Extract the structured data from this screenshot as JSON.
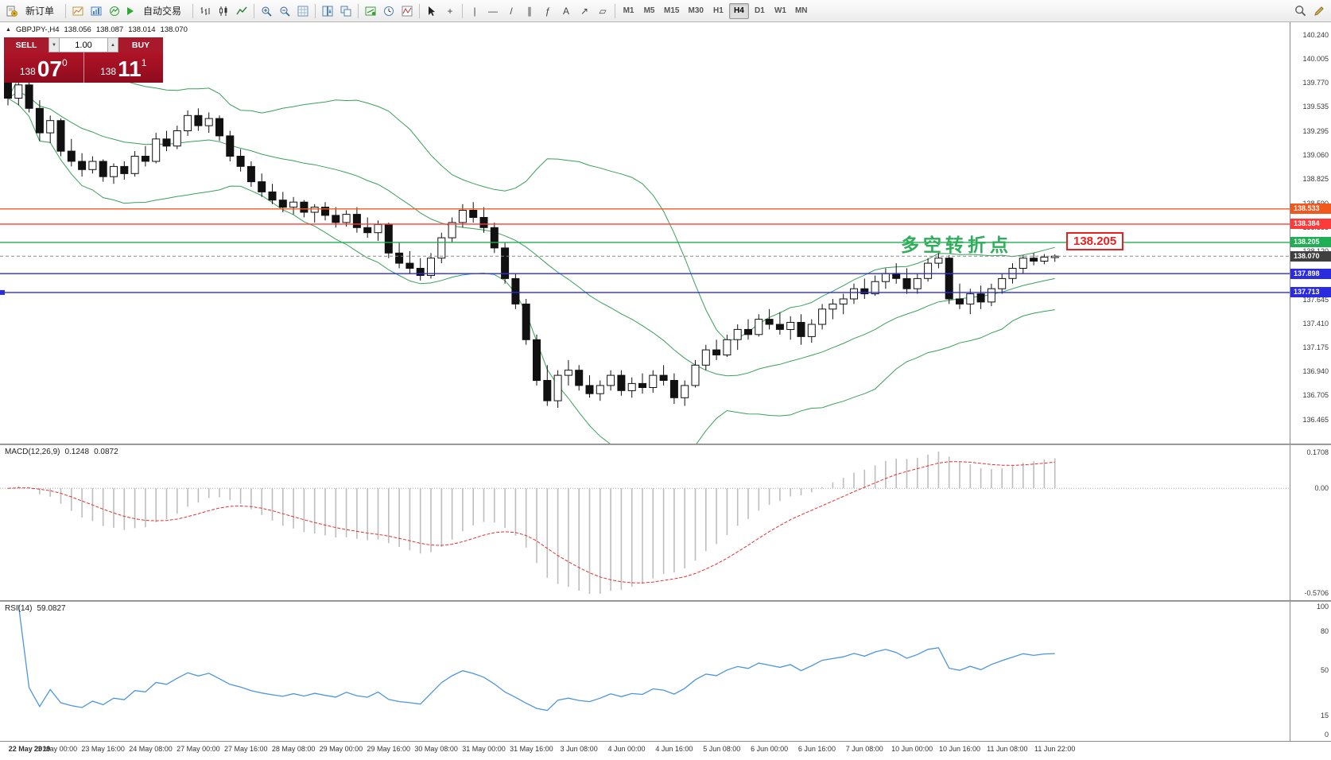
{
  "toolbar": {
    "new_order_label": "新订单",
    "auto_trading_label": "自动交易",
    "timeframes": [
      "M1",
      "M5",
      "M15",
      "M30",
      "H1",
      "H4",
      "D1",
      "W1",
      "MN"
    ],
    "active_timeframe": "H4",
    "icons": {
      "cursor": "↖",
      "crosshair": "+",
      "vertical_line": "|",
      "horizontal_line": "—",
      "trendline": "/",
      "channel": "∥",
      "fibonacci": "ƒ",
      "text": "A",
      "arrows": "↗",
      "shapes": "▱"
    }
  },
  "chart_header": {
    "symbol": "GBPJPY-,H4",
    "open": "138.056",
    "high": "138.087",
    "low": "138.014",
    "close": "138.070"
  },
  "trade_panel": {
    "sell_label": "SELL",
    "buy_label": "BUY",
    "volume": "1.00",
    "sell_price": {
      "prefix": "138",
      "big": "07",
      "sup": "0"
    },
    "buy_price": {
      "prefix": "138",
      "big": "11",
      "sup": "1"
    }
  },
  "annotation": {
    "text": "多空转折点",
    "color": "#2fae5a",
    "anchor_price": 138.205
  },
  "price_tag": {
    "text": "138.205",
    "color": "#e82020",
    "anchor_price": 138.205
  },
  "main_axis": {
    "labels": [
      "140.240",
      "140.005",
      "139.770",
      "139.535",
      "139.295",
      "139.060",
      "138.825",
      "138.590",
      "138.355",
      "138.120",
      "137.885",
      "137.645",
      "137.410",
      "137.175",
      "136.940",
      "136.705",
      "136.465"
    ]
  },
  "lines": [
    {
      "price": 138.533,
      "label": "138.533",
      "color": "#f2581e"
    },
    {
      "price": 138.384,
      "label": "138.384",
      "color": "#ff3a3a"
    },
    {
      "price": 138.205,
      "label": "138.205",
      "color": "#1fae53"
    },
    {
      "price": 137.898,
      "label": "137.898",
      "color": "#2b2be0"
    },
    {
      "price": 137.713,
      "label": "137.713",
      "color": "#2b2be0",
      "handle": true
    }
  ],
  "current_price": {
    "price": 138.07,
    "label": "138.070",
    "line_color": "#888888",
    "chip_color": "#3f3f3f"
  },
  "macd": {
    "label": "MACD(12,26,9)",
    "value_main": "0.1248",
    "value_signal": "0.0872",
    "axis": [
      "0.1708",
      "0.00",
      "-0.5706"
    ],
    "bar_color": "#bdbdbd",
    "signal_color": "#e03232"
  },
  "rsi": {
    "label": "RSI(14)",
    "value": "59.0827",
    "axis_labels": [
      "100",
      "80",
      "50",
      "15",
      "0"
    ],
    "axis_values": [
      100,
      80,
      50,
      15,
      0
    ],
    "line_color": "#4d96dc"
  },
  "time_axis": {
    "labels": [
      "22 May 2019",
      "23 May 00:00",
      "23 May 16:00",
      "24 May 08:00",
      "27 May 00:00",
      "27 May 16:00",
      "28 May 08:00",
      "29 May 00:00",
      "29 May 16:00",
      "30 May 08:00",
      "31 May 00:00",
      "31 May 16:00",
      "3 Jun 08:00",
      "4 Jun 00:00",
      "4 Jun 16:00",
      "5 Jun 08:00",
      "6 Jun 00:00",
      "6 Jun 16:00",
      "7 Jun 08:00",
      "10 Jun 00:00",
      "10 Jun 16:00",
      "11 Jun 08:00",
      "11 Jun 22:00"
    ]
  },
  "chart_data": {
    "type": "candlestick",
    "symbol": "GBPJPY",
    "timeframe": "H4",
    "price_range": [
      136.465,
      140.24
    ],
    "bollinger": {
      "period": 20,
      "deviation": 2,
      "color": "#3aa05a"
    },
    "candles": [
      [
        139.88,
        139.97,
        139.55,
        139.62
      ],
      [
        139.62,
        139.8,
        139.55,
        139.75
      ],
      [
        139.75,
        139.78,
        139.48,
        139.52
      ],
      [
        139.52,
        139.6,
        139.2,
        139.28
      ],
      [
        139.28,
        139.45,
        139.18,
        139.4
      ],
      [
        139.4,
        139.42,
        139.05,
        139.1
      ],
      [
        139.1,
        139.22,
        138.95,
        139.0
      ],
      [
        139.0,
        139.08,
        138.85,
        138.92
      ],
      [
        138.92,
        139.05,
        138.88,
        139.0
      ],
      [
        139.0,
        139.02,
        138.8,
        138.85
      ],
      [
        138.85,
        138.98,
        138.78,
        138.95
      ],
      [
        138.95,
        139.0,
        138.82,
        138.88
      ],
      [
        138.88,
        139.1,
        138.85,
        139.05
      ],
      [
        139.05,
        139.15,
        138.95,
        139.0
      ],
      [
        139.0,
        139.28,
        138.98,
        139.22
      ],
      [
        139.22,
        139.3,
        139.1,
        139.15
      ],
      [
        139.15,
        139.35,
        139.12,
        139.3
      ],
      [
        139.3,
        139.5,
        139.25,
        139.45
      ],
      [
        139.45,
        139.52,
        139.3,
        139.35
      ],
      [
        139.35,
        139.48,
        139.28,
        139.42
      ],
      [
        139.42,
        139.45,
        139.2,
        139.25
      ],
      [
        139.25,
        139.3,
        139.0,
        139.05
      ],
      [
        139.05,
        139.12,
        138.9,
        138.95
      ],
      [
        138.95,
        139.0,
        138.75,
        138.8
      ],
      [
        138.8,
        138.88,
        138.65,
        138.7
      ],
      [
        138.7,
        138.78,
        138.58,
        138.62
      ],
      [
        138.62,
        138.7,
        138.5,
        138.55
      ],
      [
        138.55,
        138.65,
        138.48,
        138.6
      ],
      [
        138.6,
        138.62,
        138.45,
        138.5
      ],
      [
        138.5,
        138.58,
        138.4,
        138.55
      ],
      [
        138.55,
        138.6,
        138.42,
        138.47
      ],
      [
        138.47,
        138.55,
        138.35,
        138.4
      ],
      [
        138.4,
        138.52,
        138.36,
        138.48
      ],
      [
        138.48,
        138.55,
        138.3,
        138.35
      ],
      [
        138.35,
        138.45,
        138.25,
        138.3
      ],
      [
        138.3,
        138.42,
        138.22,
        138.38
      ],
      [
        138.38,
        138.4,
        138.05,
        138.1
      ],
      [
        138.1,
        138.2,
        137.95,
        138.0
      ],
      [
        138.0,
        138.12,
        137.9,
        137.95
      ],
      [
        137.95,
        138.05,
        137.83,
        137.88
      ],
      [
        137.88,
        138.1,
        137.85,
        138.05
      ],
      [
        138.05,
        138.3,
        138.0,
        138.25
      ],
      [
        138.25,
        138.45,
        138.2,
        138.4
      ],
      [
        138.4,
        138.58,
        138.35,
        138.52
      ],
      [
        138.52,
        138.6,
        138.4,
        138.45
      ],
      [
        138.45,
        138.55,
        138.3,
        138.35
      ],
      [
        138.35,
        138.4,
        138.1,
        138.15
      ],
      [
        138.15,
        138.2,
        137.8,
        137.85
      ],
      [
        137.85,
        137.9,
        137.55,
        137.6
      ],
      [
        137.6,
        137.65,
        137.2,
        137.25
      ],
      [
        137.25,
        137.3,
        136.8,
        136.85
      ],
      [
        136.85,
        137.0,
        136.6,
        136.65
      ],
      [
        136.65,
        136.95,
        136.58,
        136.9
      ],
      [
        136.9,
        137.05,
        136.8,
        136.95
      ],
      [
        136.95,
        137.0,
        136.75,
        136.8
      ],
      [
        136.8,
        136.9,
        136.68,
        136.72
      ],
      [
        136.72,
        136.85,
        136.65,
        136.8
      ],
      [
        136.8,
        136.95,
        136.75,
        136.9
      ],
      [
        136.9,
        136.95,
        136.7,
        136.75
      ],
      [
        136.75,
        136.88,
        136.68,
        136.82
      ],
      [
        136.82,
        136.92,
        136.72,
        136.78
      ],
      [
        136.78,
        136.95,
        136.73,
        136.9
      ],
      [
        136.9,
        137.0,
        136.8,
        136.85
      ],
      [
        136.85,
        136.92,
        136.62,
        136.68
      ],
      [
        136.68,
        136.85,
        136.6,
        136.8
      ],
      [
        136.8,
        137.05,
        136.78,
        137.0
      ],
      [
        137.0,
        137.2,
        136.95,
        137.15
      ],
      [
        137.15,
        137.25,
        137.05,
        137.1
      ],
      [
        137.1,
        137.3,
        137.08,
        137.25
      ],
      [
        137.25,
        137.4,
        137.15,
        137.35
      ],
      [
        137.35,
        137.45,
        137.25,
        137.3
      ],
      [
        137.3,
        137.5,
        137.28,
        137.45
      ],
      [
        137.45,
        137.55,
        137.35,
        137.4
      ],
      [
        137.4,
        137.52,
        137.3,
        137.35
      ],
      [
        137.35,
        137.48,
        137.25,
        137.42
      ],
      [
        137.42,
        137.5,
        137.2,
        137.28
      ],
      [
        137.28,
        137.45,
        137.22,
        137.4
      ],
      [
        137.4,
        137.6,
        137.35,
        137.55
      ],
      [
        137.55,
        137.65,
        137.45,
        137.6
      ],
      [
        137.6,
        137.7,
        137.5,
        137.65
      ],
      [
        137.65,
        137.8,
        137.6,
        137.75
      ],
      [
        137.75,
        137.85,
        137.65,
        137.7
      ],
      [
        137.7,
        137.88,
        137.68,
        137.82
      ],
      [
        137.82,
        137.95,
        137.75,
        137.9
      ],
      [
        137.9,
        138.0,
        137.8,
        137.85
      ],
      [
        137.85,
        137.95,
        137.7,
        137.75
      ],
      [
        137.75,
        137.9,
        137.7,
        137.85
      ],
      [
        137.85,
        138.05,
        137.82,
        138.0
      ],
      [
        138.0,
        138.1,
        137.95,
        138.05
      ],
      [
        138.05,
        138.08,
        137.6,
        137.65
      ],
      [
        137.65,
        137.8,
        137.55,
        137.6
      ],
      [
        137.6,
        137.75,
        137.5,
        137.7
      ],
      [
        137.7,
        137.78,
        137.55,
        137.62
      ],
      [
        137.62,
        137.8,
        137.58,
        137.75
      ],
      [
        137.75,
        137.9,
        137.7,
        137.85
      ],
      [
        137.85,
        138.0,
        137.8,
        137.95
      ],
      [
        137.95,
        138.08,
        137.9,
        138.05
      ],
      [
        138.05,
        138.1,
        137.98,
        138.02
      ],
      [
        138.02,
        138.09,
        137.99,
        138.06
      ],
      [
        138.056,
        138.087,
        138.014,
        138.07
      ]
    ]
  }
}
